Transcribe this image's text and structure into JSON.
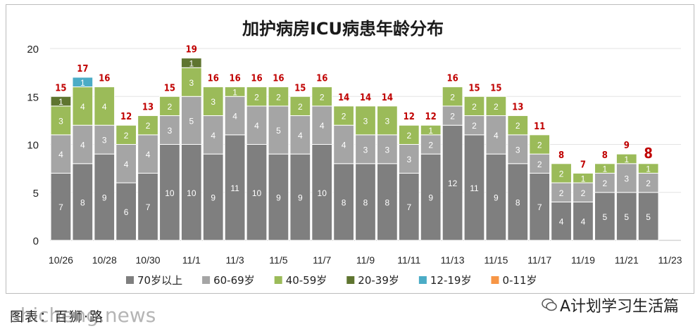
{
  "chart_data": {
    "type": "bar",
    "stacked": true,
    "title": "加护病房ICU病患年龄分布",
    "ylim": [
      0,
      20
    ],
    "yticks": [
      0,
      5,
      10,
      15,
      20
    ],
    "grid": true,
    "legend_position": "bottom",
    "categories": [
      "10/26",
      "10/27",
      "10/28",
      "10/29",
      "10/30",
      "10/31",
      "11/1",
      "11/2",
      "11/3",
      "11/4",
      "11/5",
      "11/6",
      "11/7",
      "11/8",
      "11/9",
      "11/10",
      "11/11",
      "11/12",
      "11/13",
      "11/14",
      "11/15",
      "11/16",
      "11/17",
      "11/18",
      "11/19",
      "11/20",
      "11/21",
      "11/22",
      "11/23"
    ],
    "x_tick_labels": [
      "10/26",
      "",
      "10/28",
      "",
      "10/30",
      "",
      "11/1",
      "",
      "11/3",
      "",
      "11/5",
      "",
      "11/7",
      "",
      "11/9",
      "",
      "11/11",
      "",
      "11/13",
      "",
      "11/15",
      "",
      "11/17",
      "",
      "11/19",
      "",
      "11/21",
      "",
      "11/23"
    ],
    "series": [
      {
        "name": "70岁以上",
        "color": "#7f7f7f",
        "label_color": "#ffffff",
        "values": [
          7,
          8,
          9,
          6,
          7,
          10,
          10,
          9,
          11,
          10,
          9,
          9,
          10,
          8,
          8,
          8,
          7,
          9,
          12,
          11,
          9,
          8,
          7,
          4,
          4,
          5,
          5,
          5,
          null
        ]
      },
      {
        "name": "60-69岁",
        "color": "#a5a5a5",
        "label_color": "#ffffff",
        "values": [
          4,
          4,
          3,
          4,
          4,
          3,
          5,
          4,
          4,
          4,
          5,
          4,
          4,
          4,
          3,
          3,
          3,
          2,
          2,
          2,
          4,
          3,
          2,
          2,
          2,
          2,
          3,
          2,
          null
        ]
      },
      {
        "name": "40-59岁",
        "color": "#9bbb59",
        "label_color": "#ffffff",
        "values": [
          3,
          4,
          4,
          2,
          2,
          2,
          3,
          3,
          1,
          2,
          2,
          2,
          2,
          2,
          3,
          3,
          2,
          1,
          2,
          2,
          2,
          2,
          2,
          2,
          1,
          1,
          1,
          1,
          null
        ]
      },
      {
        "name": "20-39岁",
        "color": "#5f7530",
        "label_color": "#ffffff",
        "values": [
          1,
          0,
          0,
          0,
          0,
          0,
          1,
          0,
          0,
          0,
          0,
          0,
          0,
          0,
          0,
          0,
          0,
          0,
          0,
          0,
          0,
          0,
          0,
          0,
          0,
          0,
          0,
          0,
          null
        ]
      },
      {
        "name": "12-19岁",
        "color": "#4bacc6",
        "label_color": "#ffffff",
        "values": [
          0,
          1,
          0,
          0,
          0,
          0,
          0,
          0,
          0,
          0,
          0,
          0,
          0,
          0,
          0,
          0,
          0,
          0,
          0,
          0,
          0,
          0,
          0,
          0,
          0,
          0,
          0,
          0,
          null
        ]
      },
      {
        "name": "0-11岁",
        "color": "#f79646",
        "label_color": "#ffffff",
        "values": [
          0,
          0,
          0,
          0,
          0,
          0,
          0,
          0,
          0,
          0,
          0,
          0,
          0,
          0,
          0,
          0,
          0,
          0,
          0,
          0,
          0,
          0,
          0,
          0,
          0,
          0,
          0,
          0,
          null
        ]
      }
    ],
    "totals": [
      15,
      17,
      16,
      12,
      13,
      15,
      19,
      16,
      16,
      16,
      16,
      15,
      16,
      14,
      14,
      14,
      12,
      12,
      16,
      15,
      15,
      13,
      11,
      8,
      7,
      8,
      9,
      8,
      null
    ],
    "totals_color": "#c00000",
    "highlight_last_total": true
  },
  "footer": {
    "left_text": "图表：百狮·路",
    "watermark_text": "shicheng.news",
    "account_text": "A计划学习生活篇"
  }
}
